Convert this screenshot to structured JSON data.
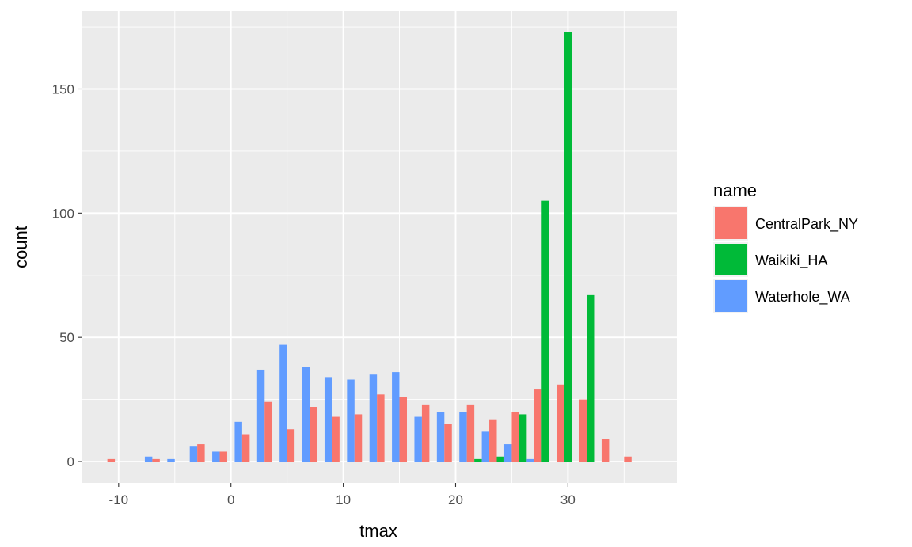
{
  "chart_data": {
    "type": "bar",
    "xlabel": "tmax",
    "ylabel": "count",
    "xlim": [
      -13.3,
      39.7
    ],
    "ylim": [
      -8.6,
      181.4
    ],
    "xticks": [
      -10,
      0,
      10,
      20,
      30
    ],
    "yticks": [
      0,
      50,
      100,
      150
    ],
    "xtick_labels": [
      "-10",
      "0",
      "10",
      "20",
      "30"
    ],
    "ytick_labels": [
      "0",
      "50",
      "100",
      "150"
    ],
    "grid": true,
    "legend": {
      "title": "name",
      "position": "right"
    },
    "bin_width": 2,
    "x": [
      -10,
      -8,
      -6,
      -4,
      -2,
      0,
      2,
      4,
      6,
      8,
      10,
      12,
      14,
      16,
      18,
      20,
      22,
      24,
      26,
      28,
      30,
      32,
      34,
      36
    ],
    "series": [
      {
        "name": "CentralPark_NY",
        "color": "#F8766D",
        "values": [
          1,
          0,
          1,
          0,
          7,
          4,
          11,
          24,
          13,
          22,
          18,
          19,
          27,
          26,
          23,
          15,
          23,
          17,
          20,
          29,
          31,
          25,
          9,
          2
        ]
      },
      {
        "name": "Waikiki_HA",
        "color": "#00BA38",
        "values": [
          0,
          0,
          0,
          0,
          0,
          0,
          0,
          0,
          0,
          0,
          0,
          0,
          0,
          0,
          0,
          0,
          1,
          2,
          19,
          105,
          173,
          67,
          0,
          0
        ]
      },
      {
        "name": "Waterhole_WA",
        "color": "#619CFF",
        "values": [
          0,
          2,
          1,
          6,
          4,
          16,
          37,
          47,
          38,
          34,
          33,
          35,
          36,
          18,
          20,
          20,
          12,
          7,
          1,
          0,
          0,
          0,
          0,
          0
        ]
      }
    ]
  }
}
